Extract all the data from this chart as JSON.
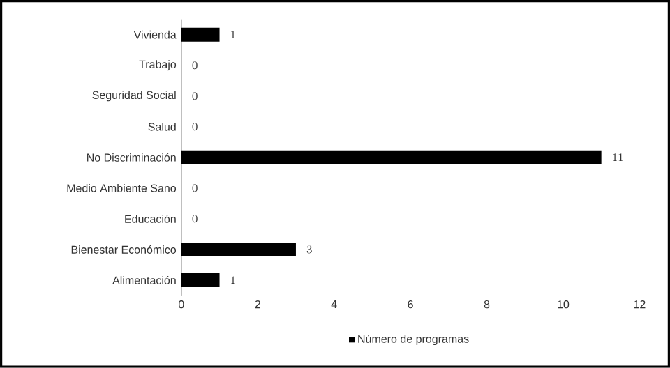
{
  "chart_data": {
    "type": "bar",
    "orientation": "horizontal",
    "categories": [
      "Vivienda",
      "Trabajo",
      "Seguridad Social",
      "Salud",
      "No Discriminación",
      "Medio Ambiente Sano",
      "Educación",
      "Bienestar Económico",
      "Alimentación"
    ],
    "series": [
      {
        "name": "Número de programas",
        "color": "#000000",
        "values": [
          1,
          0,
          0,
          0,
          11,
          0,
          0,
          3,
          1
        ]
      }
    ],
    "xlim": [
      0,
      12
    ],
    "xticks": [
      0,
      2,
      4,
      6,
      8,
      10,
      12
    ],
    "data_labels": true,
    "grid": false,
    "legend": "bottom"
  }
}
